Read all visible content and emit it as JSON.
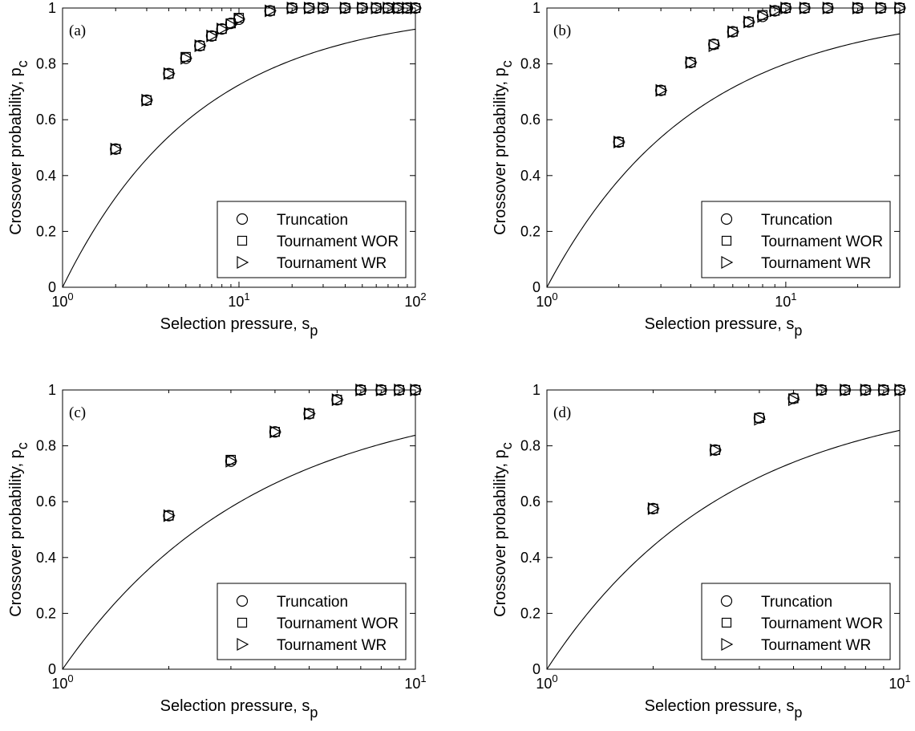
{
  "chart_data": [
    {
      "panel_label": "(a)",
      "type": "scatter",
      "x_scale": "log",
      "xlim": [
        1,
        100
      ],
      "ylim": [
        0,
        1
      ],
      "x_ticks": [
        {
          "value": 1,
          "base": "10",
          "exp": "0"
        },
        {
          "value": 10,
          "base": "10",
          "exp": "1"
        },
        {
          "value": 100,
          "base": "10",
          "exp": "2"
        }
      ],
      "y_ticks": [
        {
          "value": 0,
          "label": "0"
        },
        {
          "value": 0.2,
          "label": "0.2"
        },
        {
          "value": 0.4,
          "label": "0.4"
        },
        {
          "value": 0.6,
          "label": "0.6"
        },
        {
          "value": 0.8,
          "label": "0.8"
        },
        {
          "value": 1,
          "label": "1"
        }
      ],
      "xlabel": {
        "text": "Selection pressure, s",
        "sub": "p"
      },
      "ylabel": {
        "text": "Crossover probability, p",
        "sub": "c"
      },
      "legend": {
        "placement": "bottom-right",
        "entries": [
          "Truncation",
          "Tournament WOR",
          "Tournament WR"
        ]
      },
      "curve": {
        "x_max": 100,
        "k": 0.56
      },
      "series": [
        {
          "name": "Truncation",
          "marker": "circle",
          "x": [
            2,
            3,
            4,
            5,
            6,
            7,
            8,
            9,
            10,
            15,
            20,
            25,
            30,
            40,
            50,
            60,
            70,
            80,
            90,
            100
          ],
          "y": [
            0.495,
            0.67,
            0.765,
            0.82,
            0.865,
            0.9,
            0.925,
            0.945,
            0.96,
            0.99,
            1,
            1,
            1,
            1,
            1,
            1,
            1,
            1,
            1,
            1
          ]
        },
        {
          "name": "Tournament WOR",
          "marker": "square",
          "x": [
            2,
            3,
            4,
            5,
            6,
            7,
            8,
            9,
            10,
            15,
            20,
            25,
            30,
            40,
            50,
            60,
            70,
            80,
            90,
            100
          ],
          "y": [
            0.495,
            0.67,
            0.765,
            0.825,
            0.865,
            0.9,
            0.925,
            0.945,
            0.965,
            0.99,
            1,
            1,
            1,
            1,
            1,
            1,
            1,
            1,
            1,
            1
          ]
        },
        {
          "name": "Tournament WR",
          "marker": "triangle",
          "x": [
            2,
            3,
            4,
            5,
            6,
            7,
            8,
            9,
            10,
            15,
            20,
            25,
            30,
            40,
            50,
            60,
            70,
            80,
            90,
            100
          ],
          "y": [
            0.495,
            0.67,
            0.765,
            0.82,
            0.865,
            0.9,
            0.925,
            0.94,
            0.96,
            0.99,
            1,
            1,
            1,
            1,
            1,
            1,
            1,
            1,
            1,
            1
          ]
        }
      ]
    },
    {
      "panel_label": "(b)",
      "type": "scatter",
      "x_scale": "log",
      "xlim": [
        1,
        30
      ],
      "ylim": [
        0,
        1
      ],
      "x_ticks": [
        {
          "value": 1,
          "base": "10",
          "exp": "0"
        },
        {
          "value": 10,
          "base": "10",
          "exp": "1"
        }
      ],
      "y_ticks": [
        {
          "value": 0,
          "label": "0"
        },
        {
          "value": 0.2,
          "label": "0.2"
        },
        {
          "value": 0.4,
          "label": "0.4"
        },
        {
          "value": 0.6,
          "label": "0.6"
        },
        {
          "value": 0.8,
          "label": "0.8"
        },
        {
          "value": 1,
          "label": "1"
        }
      ],
      "xlabel": {
        "text": "Selection pressure, s",
        "sub": "p"
      },
      "ylabel": {
        "text": "Crossover probability, p",
        "sub": "c"
      },
      "legend": {
        "placement": "bottom-right",
        "entries": [
          "Truncation",
          "Tournament WOR",
          "Tournament WR"
        ]
      },
      "curve": {
        "x_max": 30,
        "k": 0.7
      },
      "series": [
        {
          "name": "Truncation",
          "marker": "circle",
          "x": [
            2,
            3,
            4,
            5,
            6,
            7,
            8,
            9,
            10,
            12,
            15,
            20,
            25,
            30
          ],
          "y": [
            0.52,
            0.705,
            0.805,
            0.87,
            0.915,
            0.95,
            0.97,
            0.99,
            1,
            1,
            1,
            1,
            1,
            1
          ]
        },
        {
          "name": "Tournament WOR",
          "marker": "square",
          "x": [
            2,
            3,
            4,
            5,
            6,
            7,
            8,
            9,
            10,
            12,
            15,
            20,
            25,
            30
          ],
          "y": [
            0.52,
            0.705,
            0.805,
            0.87,
            0.915,
            0.95,
            0.975,
            0.99,
            1,
            1,
            1,
            1,
            1,
            1
          ]
        },
        {
          "name": "Tournament WR",
          "marker": "triangle",
          "x": [
            2,
            3,
            4,
            5,
            6,
            7,
            8,
            9,
            10,
            12,
            15,
            20,
            25,
            30
          ],
          "y": [
            0.52,
            0.705,
            0.805,
            0.865,
            0.915,
            0.95,
            0.97,
            0.99,
            1,
            1,
            1,
            1,
            1,
            1
          ]
        }
      ]
    },
    {
      "panel_label": "(c)",
      "type": "scatter",
      "x_scale": "log",
      "xlim": [
        1,
        10
      ],
      "ylim": [
        0,
        1
      ],
      "x_ticks": [
        {
          "value": 1,
          "base": "10",
          "exp": "0"
        },
        {
          "value": 10,
          "base": "10",
          "exp": "1"
        }
      ],
      "y_ticks": [
        {
          "value": 0,
          "label": "0"
        },
        {
          "value": 0.2,
          "label": "0.2"
        },
        {
          "value": 0.4,
          "label": "0.4"
        },
        {
          "value": 0.6,
          "label": "0.6"
        },
        {
          "value": 0.8,
          "label": "0.8"
        },
        {
          "value": 1,
          "label": "1"
        }
      ],
      "xlabel": {
        "text": "Selection pressure, s",
        "sub": "p"
      },
      "ylabel": {
        "text": "Crossover probability, p",
        "sub": "c"
      },
      "legend": {
        "placement": "bottom-right",
        "entries": [
          "Truncation",
          "Tournament WOR",
          "Tournament WR"
        ]
      },
      "curve": {
        "x_max": 10,
        "k": 0.79
      },
      "series": [
        {
          "name": "Truncation",
          "marker": "circle",
          "x": [
            2,
            3,
            4,
            5,
            6,
            7,
            8,
            9,
            10
          ],
          "y": [
            0.55,
            0.745,
            0.85,
            0.915,
            0.965,
            1,
            1,
            1,
            1
          ]
        },
        {
          "name": "Tournament WOR",
          "marker": "square",
          "x": [
            2,
            3,
            4,
            5,
            6,
            7,
            8,
            9,
            10
          ],
          "y": [
            0.55,
            0.75,
            0.85,
            0.915,
            0.965,
            1,
            1,
            1,
            1
          ]
        },
        {
          "name": "Tournament WR",
          "marker": "triangle",
          "x": [
            2,
            3,
            4,
            5,
            6,
            7,
            8,
            9,
            10
          ],
          "y": [
            0.55,
            0.745,
            0.85,
            0.915,
            0.965,
            1,
            1,
            1,
            1
          ]
        }
      ]
    },
    {
      "panel_label": "(d)",
      "type": "scatter",
      "x_scale": "log",
      "xlim": [
        1,
        10
      ],
      "ylim": [
        0,
        1
      ],
      "x_ticks": [
        {
          "value": 1,
          "base": "10",
          "exp": "0"
        },
        {
          "value": 10,
          "base": "10",
          "exp": "1"
        }
      ],
      "y_ticks": [
        {
          "value": 0,
          "label": "0"
        },
        {
          "value": 0.2,
          "label": "0.2"
        },
        {
          "value": 0.4,
          "label": "0.4"
        },
        {
          "value": 0.6,
          "label": "0.6"
        },
        {
          "value": 0.8,
          "label": "0.8"
        },
        {
          "value": 1,
          "label": "1"
        }
      ],
      "xlabel": {
        "text": "Selection pressure, s",
        "sub": "p"
      },
      "ylabel": {
        "text": "Crossover probability, p",
        "sub": "c"
      },
      "legend": {
        "placement": "bottom-right",
        "entries": [
          "Truncation",
          "Tournament WOR",
          "Tournament WR"
        ]
      },
      "curve": {
        "x_max": 10,
        "k": 0.84
      },
      "series": [
        {
          "name": "Truncation",
          "marker": "circle",
          "x": [
            2,
            3,
            4,
            5,
            6,
            7,
            8,
            9,
            10
          ],
          "y": [
            0.575,
            0.785,
            0.9,
            0.97,
            1,
            1,
            1,
            1,
            1
          ]
        },
        {
          "name": "Tournament WOR",
          "marker": "square",
          "x": [
            2,
            3,
            4,
            5,
            6,
            7,
            8,
            9,
            10
          ],
          "y": [
            0.575,
            0.785,
            0.9,
            0.97,
            1,
            1,
            1,
            1,
            1
          ]
        },
        {
          "name": "Tournament WR",
          "marker": "triangle",
          "x": [
            2,
            3,
            4,
            5,
            6,
            7,
            8,
            9,
            10
          ],
          "y": [
            0.575,
            0.785,
            0.895,
            0.965,
            1,
            1,
            1,
            1,
            1
          ]
        }
      ]
    }
  ]
}
